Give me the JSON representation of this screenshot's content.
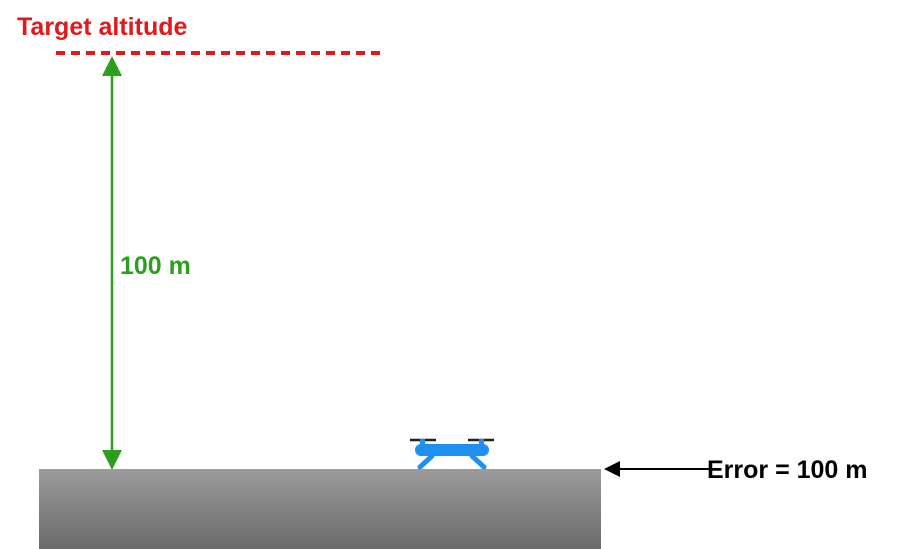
{
  "diagram": {
    "target_label": "Target altitude",
    "distance_label": "100 m",
    "error_label": "Error = 100 m",
    "colors": {
      "target": "#e0191b",
      "distance": "#2e9e1e",
      "drone": "#1f8ff0",
      "ground_top": "#9a9a9a",
      "ground_bottom": "#6c6c6c",
      "arrow": "#000000"
    },
    "icons": {
      "drone": "drone-icon"
    }
  }
}
